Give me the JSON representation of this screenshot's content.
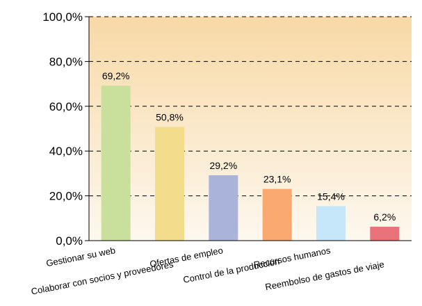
{
  "chart_data": {
    "type": "bar",
    "title": "",
    "xlabel": "",
    "ylabel": "",
    "categories": [
      "Gestionar su web",
      "Colaborar con socios y proveedores",
      "Ofertas de empleo",
      "Control de la producción",
      "Recursos humanos",
      "Reembolso de gastos de viaje"
    ],
    "values": [
      69.2,
      50.8,
      29.2,
      23.1,
      15.4,
      6.2
    ],
    "data_labels": [
      "69,2%",
      "50,8%",
      "29,2%",
      "23,1%",
      "15,4%",
      "6,2%"
    ],
    "bar_colors": [
      "#c8e09b",
      "#f3dc8c",
      "#aab3da",
      "#f9a870",
      "#c5e6f8",
      "#e8737a"
    ],
    "ylim": [
      0,
      100
    ],
    "yticks": [
      0,
      20,
      40,
      60,
      80,
      100
    ],
    "ytick_labels": [
      "0,0%",
      "20,0%",
      "40,0%",
      "60,0%",
      "80,0%",
      "100,0%"
    ],
    "grid": "horizontal-dashed",
    "legend": "none",
    "background_gradient": [
      "#f8d9a6",
      "#fdf8ef"
    ]
  }
}
